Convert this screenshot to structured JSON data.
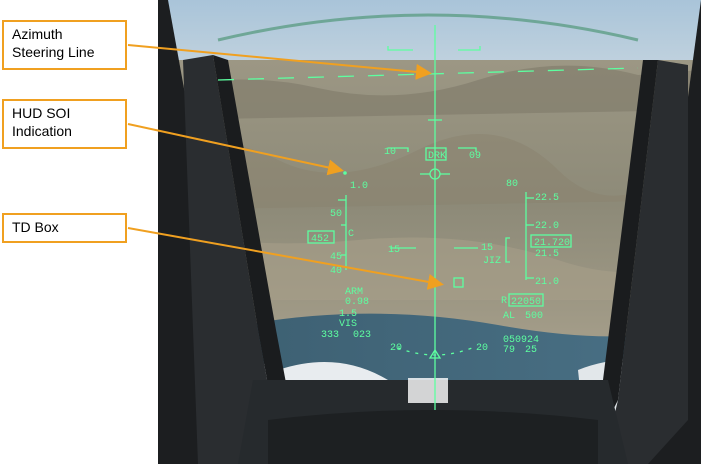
{
  "callouts": {
    "azimuth_steering": {
      "line1": "Azimuth",
      "line2": "Steering Line"
    },
    "hud_soi": {
      "line1": "HUD SOI",
      "line2": "Indication"
    },
    "td_box": {
      "line1": "TD Box"
    }
  },
  "hud": {
    "pitch_left_upper": "10",
    "pitch_right_upper": "09",
    "heading_box": "DRK",
    "scale_top_left": "1.0",
    "airspeed_upper": "50",
    "airspeed_box": "452",
    "airspeed_mark": "C",
    "airspeed_lower": "45",
    "airspeed_bottom": "40",
    "altitude_top": "80",
    "alt_225": "22.5",
    "alt_220": "22.0",
    "alt_box": "21.720",
    "alt_215": "21.5",
    "alt_210": "21.0",
    "jiz": "JIZ",
    "pitch_15_left": "15",
    "pitch_15_right": "15",
    "arm": "ARM",
    "mach": "0.98",
    "vis_num": "1.5",
    "vis": "VIS",
    "range_left": "333",
    "range_right": "023",
    "radar_alt_label": "R",
    "radar_alt_box": "22050",
    "al_label": "AL",
    "al_value": "500",
    "time": "050924",
    "bottom_left": "79",
    "bottom_right": "25",
    "roll_left": "20",
    "roll_right": "20"
  },
  "colors": {
    "hud_green": "#5dffa0",
    "callout_border": "#f0a020"
  }
}
